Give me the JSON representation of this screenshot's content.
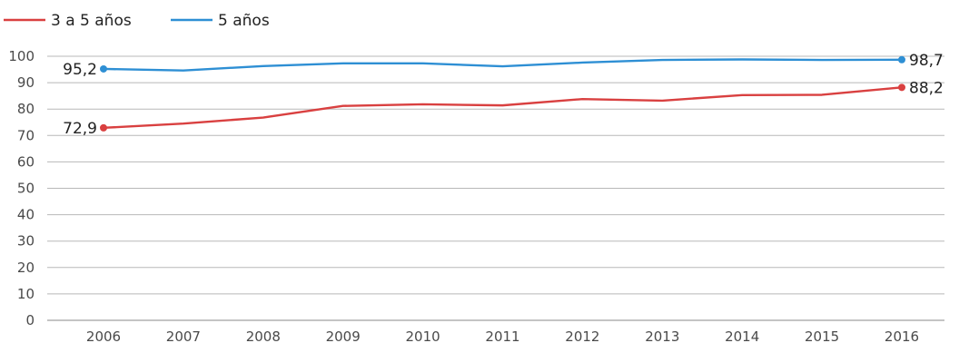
{
  "chart_data": {
    "type": "line",
    "title": "",
    "xlabel": "",
    "ylabel": "",
    "categories": [
      "2006",
      "2007",
      "2008",
      "2009",
      "2010",
      "2011",
      "2012",
      "2013",
      "2014",
      "2015",
      "2016"
    ],
    "ylim": [
      0,
      100
    ],
    "yticks": [
      0,
      10,
      20,
      30,
      40,
      50,
      60,
      70,
      80,
      90,
      100
    ],
    "grid": true,
    "legend_position": "top-left",
    "series": [
      {
        "name": "3 a 5 años",
        "color": "#d94040",
        "values": [
          72.9,
          74.5,
          76.8,
          81.2,
          81.8,
          81.4,
          83.8,
          83.2,
          85.3,
          85.4,
          88.2
        ],
        "labels": [
          {
            "index": 0,
            "text": "72,9",
            "side": "left"
          },
          {
            "index": 10,
            "text": "88,2",
            "side": "right"
          }
        ]
      },
      {
        "name": "5 años",
        "color": "#2e8fd4",
        "values": [
          95.2,
          94.6,
          96.3,
          97.3,
          97.3,
          96.2,
          97.6,
          98.6,
          98.8,
          98.6,
          98.7
        ],
        "labels": [
          {
            "index": 0,
            "text": "95,2",
            "side": "left"
          },
          {
            "index": 10,
            "text": "98,7",
            "side": "right"
          }
        ]
      }
    ]
  }
}
